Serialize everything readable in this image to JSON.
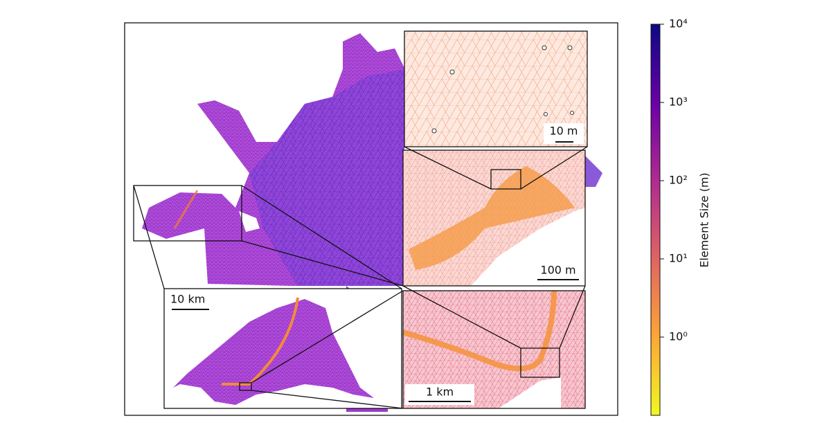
{
  "chart_data": {
    "type": "mesh",
    "annotations": [
      "10 m",
      "100 m",
      "1 km",
      "10 km"
    ],
    "ylabel": "Element Size (m)",
    "yscale": "log",
    "ylim": [
      0.1,
      10000
    ],
    "yticks": [
      {
        "value": 1,
        "label": "10⁰"
      },
      {
        "value": 10,
        "label": "10¹"
      },
      {
        "value": 100,
        "label": "10²"
      },
      {
        "value": 1000,
        "label": "10³"
      },
      {
        "value": 10000,
        "label": "10⁴"
      }
    ],
    "colormap": [
      "#f0f921",
      "#fca636",
      "#e16462",
      "#b12a90",
      "#6a00a8",
      "#0d0887"
    ]
  }
}
